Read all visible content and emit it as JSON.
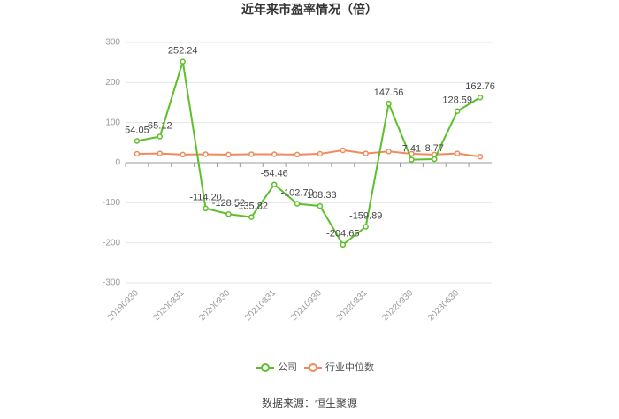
{
  "chart_data": {
    "type": "line",
    "title": "近年来市盈率情况（倍）",
    "categories": [
      "20190930",
      null,
      "20200331",
      null,
      "20200930",
      null,
      "20210331",
      null,
      "20210930",
      null,
      "20220331",
      null,
      "20220930",
      null,
      "20230630",
      null
    ],
    "series": [
      {
        "name": "公司",
        "color": "#5cc02a",
        "values": [
          54.05,
          65.12,
          252.24,
          -114.2,
          -128.52,
          -135.82,
          -54.46,
          -102.7,
          -108.33,
          -204.65,
          -159.89,
          147.56,
          7.41,
          8.77,
          128.59,
          162.76
        ],
        "value_labels": [
          "54.05",
          "65.12",
          "252.24",
          "-114.20",
          "-128.52",
          "-135.82",
          "-54.46",
          "-102.70",
          "-108.33",
          "-204.65",
          "-159.89",
          "147.56",
          "7.41",
          "8.77",
          "128.59",
          "162.76"
        ]
      },
      {
        "name": "行业中位数",
        "color": "#f08a5d",
        "values": [
          22,
          23,
          20,
          21,
          20,
          21,
          21,
          20,
          22,
          31,
          23,
          28,
          22,
          20,
          23,
          15
        ]
      }
    ],
    "ylim": [
      -300,
      300
    ],
    "yticks": [
      -300,
      -200,
      -100,
      0,
      100,
      200,
      300
    ],
    "grid": true,
    "source": "数据来源：恒生聚源"
  }
}
